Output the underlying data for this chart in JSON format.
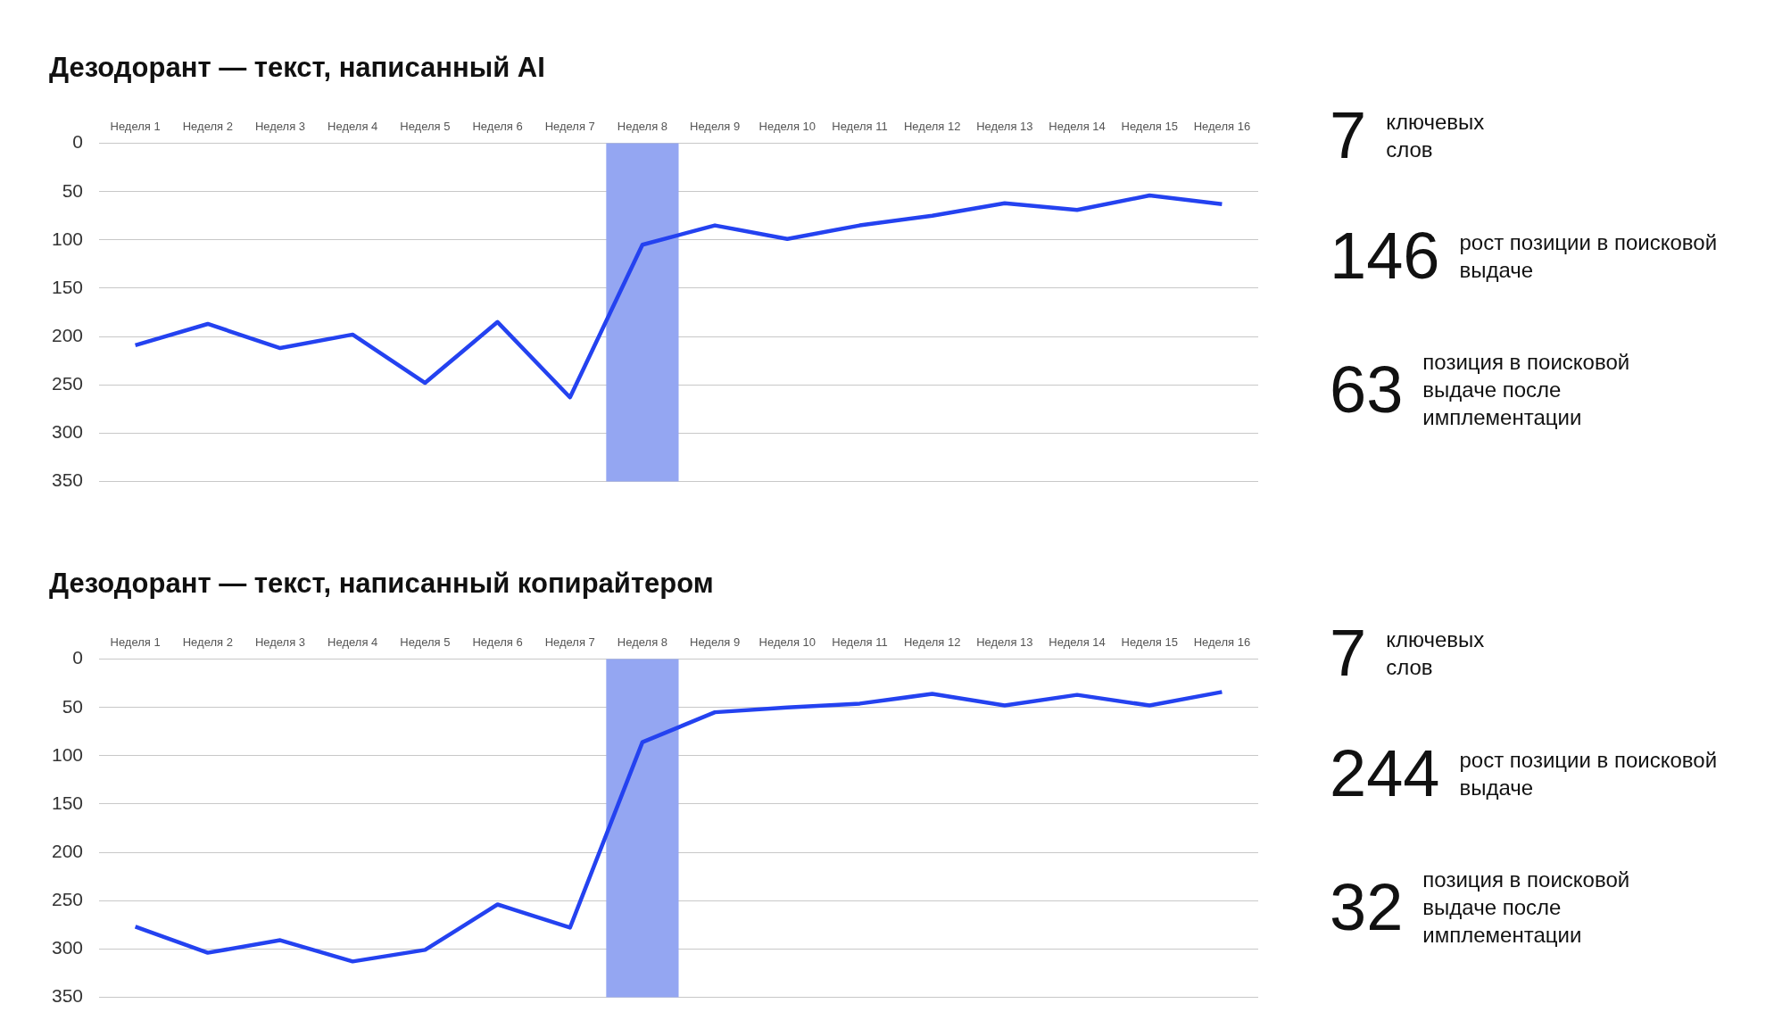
{
  "chart_data": [
    {
      "type": "line",
      "title": "Дезодорант — текст, написанный AI",
      "categories": [
        "Неделя 1",
        "Неделя 2",
        "Неделя 3",
        "Неделя 4",
        "Неделя 5",
        "Неделя 6",
        "Неделя 7",
        "Неделя 8",
        "Неделя 9",
        "Неделя 10",
        "Неделя 11",
        "Неделя 12",
        "Неделя 13",
        "Неделя 14",
        "Неделя 15",
        "Неделя 16"
      ],
      "series": [
        {
          "color": "#2442f0",
          "values": [
            209,
            187,
            212,
            198,
            248,
            185,
            263,
            105,
            85,
            99,
            85,
            75,
            62,
            69,
            54,
            63
          ]
        }
      ],
      "ylim": [
        350,
        0
      ],
      "yticks": [
        0,
        50,
        100,
        150,
        200,
        250,
        300,
        350
      ],
      "grid": "y",
      "marker": "none",
      "bands": [
        {
          "axis": "x",
          "from": "Неделя 8",
          "to": "Неделя 8",
          "color": "#94a6f2"
        }
      ]
    },
    {
      "type": "other",
      "annotations": [
        "7",
        "ключевых слов",
        "146",
        "рост позиции в поисковой выдаче",
        "63",
        "позиция в поисковой выдаче после имплементации"
      ]
    },
    {
      "type": "line",
      "title": "Дезодорант — текст, написанный копирайтером",
      "categories": [
        "Неделя 1",
        "Неделя 2",
        "Неделя 3",
        "Неделя 4",
        "Неделя 5",
        "Неделя 6",
        "Неделя 7",
        "Неделя 8",
        "Неделя 9",
        "Неделя 10",
        "Неделя 11",
        "Неделя 12",
        "Неделя 13",
        "Неделя 14",
        "Неделя 15",
        "Неделя 16"
      ],
      "series": [
        {
          "color": "#2442f0",
          "values": [
            277,
            304,
            291,
            313,
            301,
            254,
            278,
            86,
            55,
            50,
            46,
            36,
            48,
            37,
            48,
            34
          ]
        }
      ],
      "ylim": [
        350,
        0
      ],
      "yticks": [
        0,
        50,
        100,
        150,
        200,
        250,
        300,
        350
      ],
      "grid": "y",
      "marker": "none",
      "bands": [
        {
          "axis": "x",
          "from": "Неделя 8",
          "to": "Неделя 8",
          "color": "#94a6f2"
        }
      ]
    },
    {
      "type": "other",
      "annotations": [
        "7",
        "ключевых слов",
        "244",
        "рост позиции в поисковой выдаче",
        "32",
        "позиция в поисковой выдаче после имплементации"
      ]
    }
  ]
}
